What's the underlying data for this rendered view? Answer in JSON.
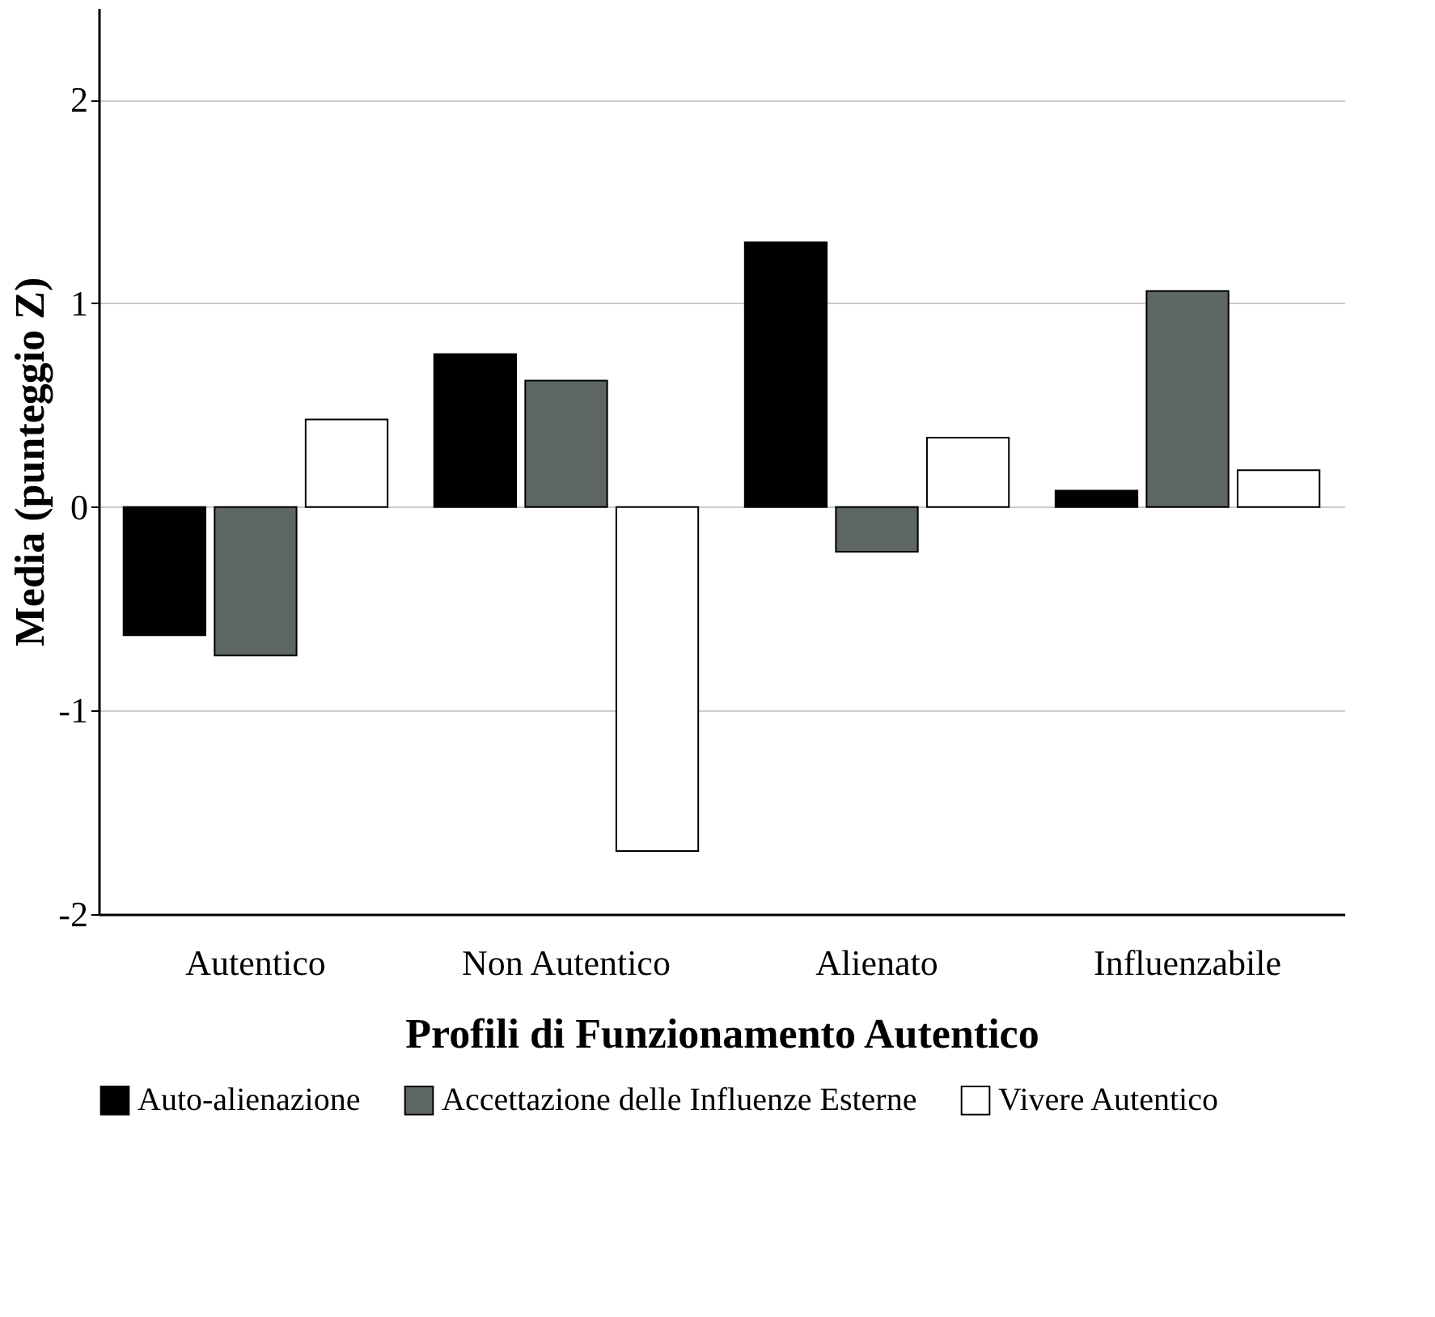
{
  "chart_data": {
    "type": "bar",
    "xlabel": "Profili di Funzionamento Autentico",
    "ylabel": "Media (punteggio Z)",
    "categories": [
      "Autentico",
      "Non Autentico",
      "Alienato",
      "Influenzabile"
    ],
    "series": [
      {
        "name": "Auto-alienazione",
        "color": "#000000",
        "values": [
          -0.63,
          0.75,
          1.3,
          0.08
        ]
      },
      {
        "name": "Accettazione delle Influenze Esterne",
        "color": "#5d6662",
        "values": [
          -0.73,
          0.62,
          -0.22,
          1.06
        ]
      },
      {
        "name": "Vivere Autentico",
        "color": "#ffffff",
        "values": [
          0.43,
          -1.69,
          0.34,
          0.18
        ]
      }
    ],
    "ylim": [
      -2,
      2.45
    ],
    "yticks": [
      -2,
      -1,
      0,
      1,
      2
    ],
    "grid": "y",
    "legend": "bottom"
  }
}
